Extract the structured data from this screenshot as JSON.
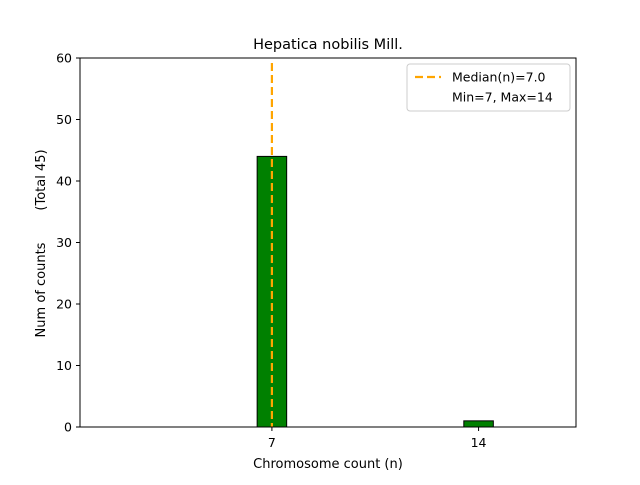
{
  "chart_data": {
    "type": "bar",
    "title": "Hepatica nobilis Mill.",
    "xlabel": "Chromosome count (n)",
    "ylabel": "Num of counts",
    "ylabel_extra": "(Total 45)",
    "x": [
      7,
      14
    ],
    "values": [
      44,
      1
    ],
    "xticks": [
      7,
      14
    ],
    "yticks": [
      0,
      10,
      20,
      30,
      40,
      50,
      60
    ],
    "xlim": [
      0.5,
      17.3
    ],
    "ylim": [
      0,
      60
    ],
    "bar_width": 1.0,
    "median_line": {
      "x": 7.0,
      "label": "Median(n)=7.0",
      "color": "#ffa500"
    },
    "legend": {
      "position": "top-right",
      "entries": [
        "Median(n)=7.0",
        "Min=7, Max=14"
      ]
    },
    "bar_color": "#008000",
    "edge_color": "#000000",
    "grid": false
  }
}
